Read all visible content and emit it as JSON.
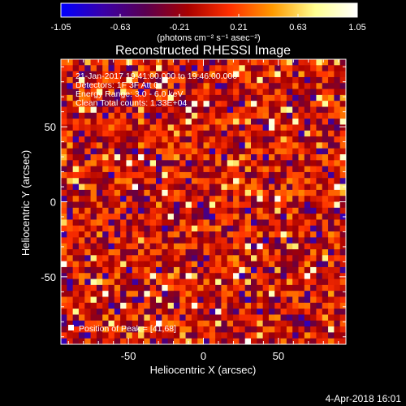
{
  "chart_data": {
    "type": "heatmap",
    "title": "Reconstructed RHESSI Image",
    "xlabel": "Heliocentric X (arcsec)",
    "ylabel": "Heliocentric Y (arcsec)",
    "xlim": [
      -95,
      95
    ],
    "ylim": [
      -95,
      95
    ],
    "xticks": [
      "-50",
      "0",
      "50"
    ],
    "xtick_values": [
      -50,
      0,
      50
    ],
    "yticks": [
      "-50",
      "0",
      "50"
    ],
    "ytick_values": [
      -50,
      0,
      50
    ],
    "grid_size": 48,
    "colorbar": {
      "min": -1.05,
      "max": 1.05,
      "tick_labels": [
        "-1.05",
        "-0.63",
        "-0.21",
        "0.21",
        "0.63",
        "1.05"
      ],
      "tick_values": [
        -1.05,
        -0.63,
        -0.21,
        0.21,
        0.63,
        1.05
      ],
      "unit_label": "(photons cm⁻² s⁻¹ asec⁻²)",
      "colors": [
        "#0000ff",
        "#3a00a8",
        "#5a0050",
        "#a80000",
        "#ff3000",
        "#ff9a00",
        "#ffff90",
        "#ffffff"
      ]
    },
    "annotations": [
      "21-Jan-2017 19:41:00.000 to 19:46:00.000",
      "Detectors: 1F 3F  Att 0",
      "Energy Range: 3.0 - 6.0 keV",
      "Clean      Total counts: 1.33E+04"
    ],
    "peak_label": "Position of Peak = [41,68]",
    "timestamp": "4-Apr-2018 16:01"
  }
}
